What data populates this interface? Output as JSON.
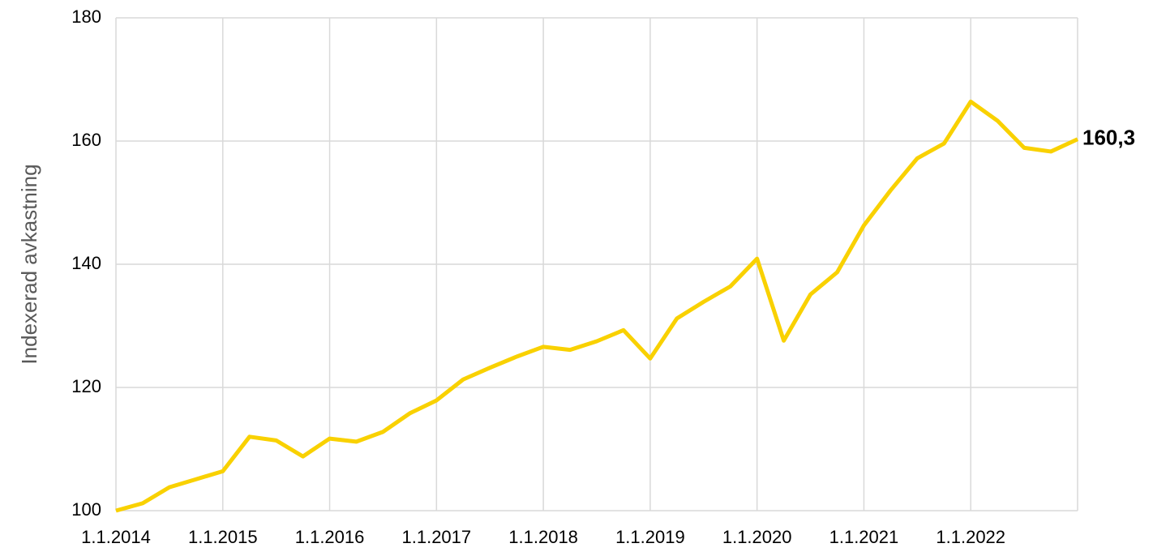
{
  "chart_data": {
    "type": "line",
    "y_label": "Indexerad avkastning",
    "x": [
      2014,
      2014.25,
      2014.5,
      2014.75,
      2015,
      2015.25,
      2015.5,
      2015.75,
      2016,
      2016.25,
      2016.5,
      2016.75,
      2017,
      2017.25,
      2017.5,
      2017.75,
      2018,
      2018.25,
      2018.5,
      2018.75,
      2019,
      2019.25,
      2019.5,
      2019.75,
      2020,
      2020.25,
      2020.5,
      2020.75,
      2021,
      2021.25,
      2021.5,
      2021.75,
      2022,
      2022.25,
      2022.5,
      2022.75,
      2023
    ],
    "series": [
      {
        "color": "#f9d100",
        "values": [
          100,
          101.2,
          103.8,
          105.1,
          106.4,
          112.0,
          111.4,
          108.8,
          111.7,
          111.2,
          112.8,
          115.8,
          117.9,
          121.3,
          123.2,
          125.0,
          126.6,
          126.1,
          127.5,
          129.3,
          124.7,
          131.2,
          133.9,
          136.4,
          140.9,
          127.6,
          135.1,
          138.7,
          146.3,
          152.0,
          157.2,
          159.6,
          166.4,
          163.3,
          158.9,
          158.3,
          160.3
        ],
        "value_labels": [
          null,
          null,
          null,
          null,
          null,
          null,
          null,
          null,
          null,
          null,
          null,
          null,
          null,
          null,
          null,
          null,
          null,
          null,
          null,
          null,
          null,
          null,
          null,
          null,
          null,
          null,
          null,
          null,
          null,
          null,
          null,
          null,
          null,
          null,
          null,
          null,
          "160,3"
        ]
      }
    ],
    "xlim": [
      2014,
      2023
    ],
    "xticks": [
      {
        "value": 2014,
        "label": "1.1.2014"
      },
      {
        "value": 2015,
        "label": "1.1.2015"
      },
      {
        "value": 2016,
        "label": "1.1.2016"
      },
      {
        "value": 2017,
        "label": "1.1.2017"
      },
      {
        "value": 2018,
        "label": "1.1.2018"
      },
      {
        "value": 2019,
        "label": "1.1.2019"
      },
      {
        "value": 2020,
        "label": "1.1.2020"
      },
      {
        "value": 2021,
        "label": "1.1.2021"
      },
      {
        "value": 2022,
        "label": "1.1.2022"
      }
    ],
    "ylim": [
      100,
      180
    ],
    "yticks": [
      100,
      120,
      140,
      160,
      180
    ],
    "grid": true
  }
}
